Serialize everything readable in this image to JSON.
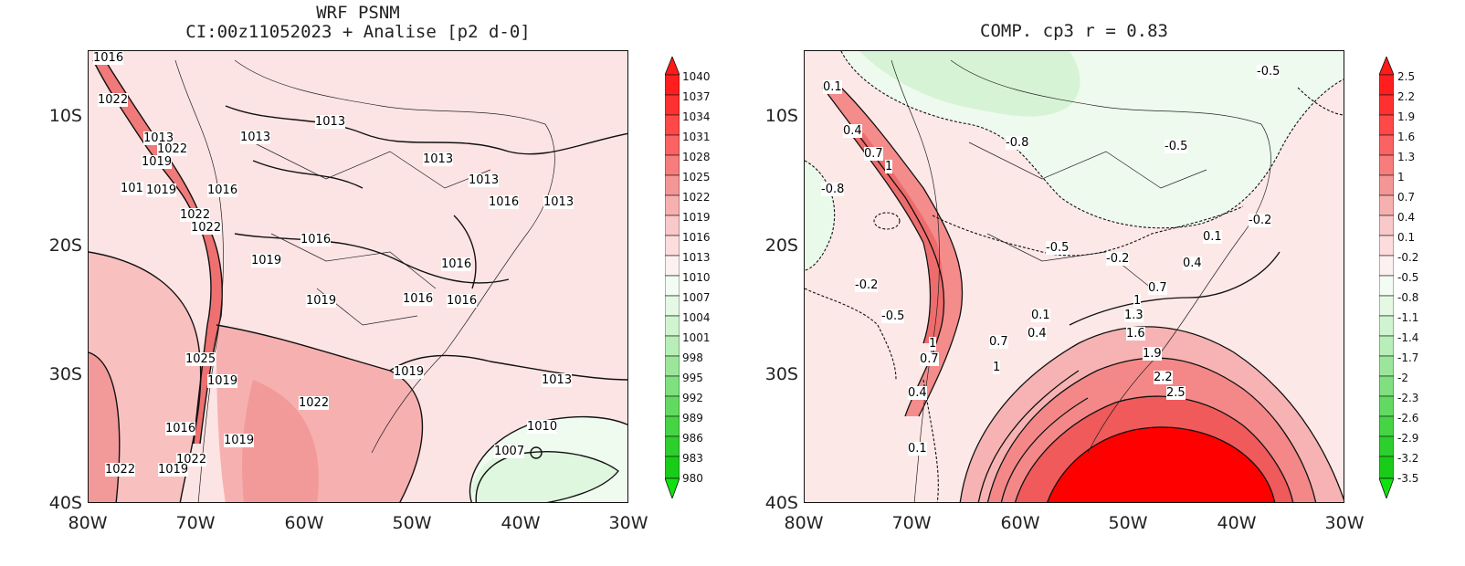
{
  "left_panel": {
    "title_line1": "WRF PSNM",
    "title_line2": "CI:00z11052023 + Analise  [p2 d-0]",
    "lat_ticks": [
      "10S",
      "20S",
      "30S",
      "40S"
    ],
    "lon_ticks": [
      "80W",
      "70W",
      "60W",
      "50W",
      "40W",
      "30W"
    ],
    "contour_labels": [
      "1016",
      "1022",
      "1013",
      "1022",
      "1019",
      "101",
      "1019",
      "1016",
      "1022",
      "1022",
      "1013",
      "1013",
      "1013",
      "1013",
      "1016",
      "1013",
      "1016",
      "1019",
      "1016",
      "1019",
      "1016",
      "1016",
      "1025",
      "1019",
      "1019",
      "1022",
      "1013",
      "1010",
      "1007",
      "1016",
      "1019",
      "1022",
      "1022",
      "1019"
    ],
    "colorbar": [
      "1040",
      "1037",
      "1034",
      "1031",
      "1028",
      "1025",
      "1022",
      "1019",
      "1016",
      "1013",
      "1010",
      "1007",
      "1004",
      "1001",
      "998",
      "995",
      "992",
      "989",
      "986",
      "983",
      "980"
    ]
  },
  "right_panel": {
    "title": "COMP. cp3  r =  0.83",
    "lat_ticks": [
      "10S",
      "20S",
      "30S",
      "40S"
    ],
    "lon_ticks": [
      "80W",
      "70W",
      "60W",
      "50W",
      "40W",
      "30W"
    ],
    "contour_labels": [
      "0.1",
      "0.4",
      "0.7",
      "1",
      "-0.8",
      "-0.8",
      "-0.5",
      "-0.5",
      "-0.2",
      "-0.2",
      "-0.5",
      "-0.2",
      "0.1",
      "0.4",
      "0.7",
      "1",
      "1.3",
      "1.6",
      "1.9",
      "2.2",
      "2.5",
      "0.1",
      "0.4",
      "0.7",
      "1",
      "1",
      "0.7",
      "0.4",
      "0.1",
      "-0.5"
    ],
    "colorbar": [
      "2.5",
      "2.2",
      "1.9",
      "1.6",
      "1.3",
      "1",
      "0.7",
      "0.4",
      "0.1",
      "-0.2",
      "-0.5",
      "-0.8",
      "-1.1",
      "-1.4",
      "-1.7",
      "-2",
      "-2.3",
      "-2.6",
      "-2.9",
      "-3.2",
      "-3.5"
    ]
  },
  "colors": {
    "red_strong": "#ff0000",
    "red_mid": "#f08080",
    "pink": "#fcd6d6",
    "pink_light": "#fdeaea",
    "green_light": "#e6f8e6",
    "green_mid": "#c9f0c9"
  }
}
